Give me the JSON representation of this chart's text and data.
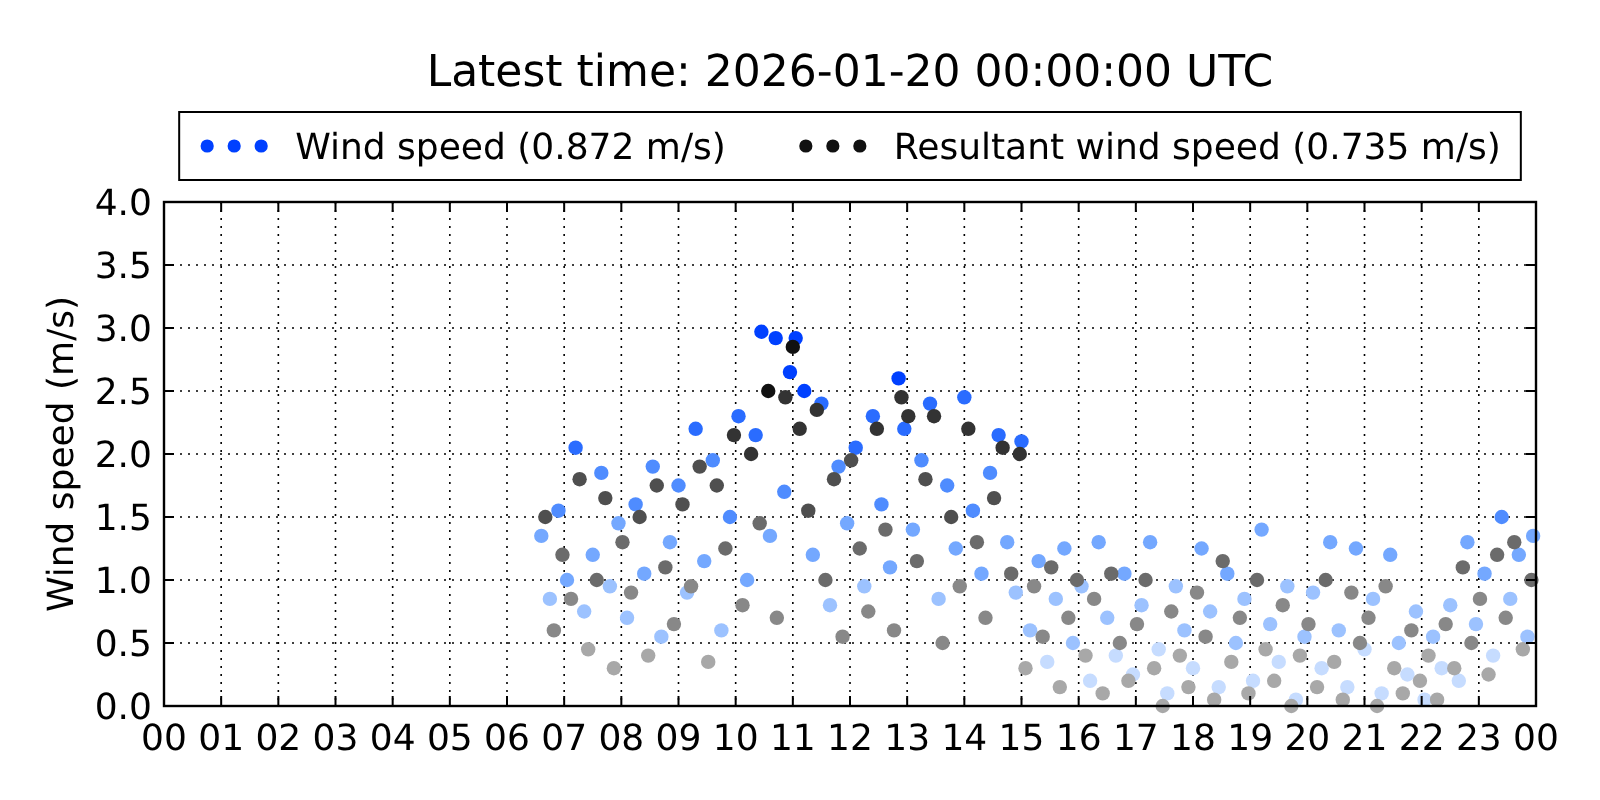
{
  "chart_data": {
    "type": "scatter",
    "title": "Latest time: 2026-01-20 00:00:00 UTC",
    "ylabel": "Wind speed (m/s)",
    "xlim": [
      0,
      24
    ],
    "xticks": [
      {
        "value": 0,
        "label": "00"
      },
      {
        "value": 1,
        "label": "01"
      },
      {
        "value": 2,
        "label": "02"
      },
      {
        "value": 3,
        "label": "03"
      },
      {
        "value": 4,
        "label": "04"
      },
      {
        "value": 5,
        "label": "05"
      },
      {
        "value": 6,
        "label": "06"
      },
      {
        "value": 7,
        "label": "07"
      },
      {
        "value": 8,
        "label": "08"
      },
      {
        "value": 9,
        "label": "09"
      },
      {
        "value": 10,
        "label": "10"
      },
      {
        "value": 11,
        "label": "11"
      },
      {
        "value": 12,
        "label": "12"
      },
      {
        "value": 13,
        "label": "13"
      },
      {
        "value": 14,
        "label": "14"
      },
      {
        "value": 15,
        "label": "15"
      },
      {
        "value": 16,
        "label": "16"
      },
      {
        "value": 17,
        "label": "17"
      },
      {
        "value": 18,
        "label": "18"
      },
      {
        "value": 19,
        "label": "19"
      },
      {
        "value": 20,
        "label": "20"
      },
      {
        "value": 21,
        "label": "21"
      },
      {
        "value": 22,
        "label": "22"
      },
      {
        "value": 23,
        "label": "23"
      },
      {
        "value": 24,
        "label": "00"
      }
    ],
    "ylim": [
      0,
      4
    ],
    "yticks": [
      {
        "value": 0,
        "label": "0.0"
      },
      0.5,
      {
        "value": 1,
        "label": "1.0"
      },
      1.5,
      {
        "value": 2,
        "label": "2.0"
      },
      2.5,
      {
        "value": 3,
        "label": "3.0"
      },
      3.5,
      {
        "value": 4,
        "label": "4.0"
      }
    ],
    "grid": true,
    "legend": "top",
    "marker": "circle",
    "series": [
      {
        "name": "Wind speed (0.872 m/s)",
        "color": "#0040ff",
        "x": [
          6.6,
          6.75,
          6.9,
          7.05,
          7.2,
          7.35,
          7.5,
          7.65,
          7.8,
          7.95,
          8.1,
          8.25,
          8.4,
          8.55,
          8.7,
          8.85,
          9.0,
          9.15,
          9.3,
          9.45,
          9.6,
          9.75,
          9.9,
          10.05,
          10.2,
          10.35,
          10.45,
          10.6,
          10.7,
          10.85,
          10.95,
          11.05,
          11.2,
          11.35,
          11.5,
          11.65,
          11.8,
          11.95,
          12.1,
          12.25,
          12.4,
          12.55,
          12.7,
          12.85,
          12.95,
          13.1,
          13.25,
          13.4,
          13.55,
          13.7,
          13.85,
          14.0,
          14.15,
          14.3,
          14.45,
          14.6,
          14.75,
          14.9,
          15.0,
          15.15,
          15.3,
          15.45,
          15.6,
          15.75,
          15.9,
          16.05,
          16.2,
          16.35,
          16.5,
          16.65,
          16.8,
          16.95,
          17.1,
          17.25,
          17.4,
          17.55,
          17.7,
          17.85,
          18.0,
          18.15,
          18.3,
          18.45,
          18.6,
          18.75,
          18.9,
          19.05,
          19.2,
          19.35,
          19.5,
          19.65,
          19.8,
          19.95,
          20.1,
          20.25,
          20.4,
          20.55,
          20.7,
          20.85,
          21.0,
          21.15,
          21.3,
          21.45,
          21.6,
          21.75,
          21.9,
          22.05,
          22.2,
          22.35,
          22.5,
          22.65,
          22.8,
          22.95,
          23.1,
          23.25,
          23.4,
          23.55,
          23.7,
          23.85,
          23.95
        ],
        "values": [
          1.35,
          0.85,
          1.55,
          1.0,
          2.05,
          0.75,
          1.2,
          1.85,
          0.95,
          1.45,
          0.7,
          1.6,
          1.05,
          1.9,
          0.55,
          1.3,
          1.75,
          0.9,
          2.2,
          1.15,
          1.95,
          0.6,
          1.5,
          2.3,
          1.0,
          2.15,
          2.97,
          1.35,
          2.92,
          1.7,
          2.65,
          2.92,
          2.5,
          1.2,
          2.4,
          0.8,
          1.9,
          1.45,
          2.05,
          0.95,
          2.3,
          1.6,
          1.1,
          2.6,
          2.2,
          1.4,
          1.95,
          2.4,
          0.85,
          1.75,
          1.25,
          2.45,
          1.55,
          1.05,
          1.85,
          2.15,
          1.3,
          0.9,
          2.1,
          0.6,
          1.15,
          0.35,
          0.85,
          1.25,
          0.5,
          0.95,
          0.2,
          1.3,
          0.7,
          0.4,
          1.05,
          0.25,
          0.8,
          1.3,
          0.45,
          0.1,
          0.95,
          0.6,
          0.3,
          1.25,
          0.75,
          0.15,
          1.05,
          0.5,
          0.85,
          0.2,
          1.4,
          0.65,
          0.35,
          0.95,
          0.05,
          0.55,
          0.9,
          0.3,
          1.3,
          0.6,
          0.15,
          1.25,
          0.45,
          0.85,
          0.1,
          1.2,
          0.5,
          0.25,
          0.75,
          0.05,
          0.55,
          0.3,
          0.8,
          0.2,
          1.3,
          0.65,
          1.05,
          0.4,
          1.5,
          0.85,
          1.2,
          0.55,
          1.35
        ],
        "colors": [
          "#74a8ff",
          "#9cc2ff",
          "#4f8cff",
          "#74a8ff",
          "#2a6cff",
          "#9cc2ff",
          "#74a8ff",
          "#4f8cff",
          "#9cc2ff",
          "#74a8ff",
          "#9cc2ff",
          "#4f8cff",
          "#74a8ff",
          "#4f8cff",
          "#9cc2ff",
          "#74a8ff",
          "#4f8cff",
          "#9cc2ff",
          "#2a6cff",
          "#74a8ff",
          "#4f8cff",
          "#9cc2ff",
          "#4f8cff",
          "#2a6cff",
          "#74a8ff",
          "#2a6cff",
          "#0040ff",
          "#74a8ff",
          "#0040ff",
          "#4f8cff",
          "#0040ff",
          "#0040ff",
          "#0040ff",
          "#74a8ff",
          "#2a6cff",
          "#9cc2ff",
          "#4f8cff",
          "#74a8ff",
          "#2a6cff",
          "#9cc2ff",
          "#2a6cff",
          "#4f8cff",
          "#74a8ff",
          "#0040ff",
          "#2a6cff",
          "#74a8ff",
          "#4f8cff",
          "#2a6cff",
          "#9cc2ff",
          "#4f8cff",
          "#74a8ff",
          "#2a6cff",
          "#4f8cff",
          "#74a8ff",
          "#4f8cff",
          "#2a6cff",
          "#74a8ff",
          "#9cc2ff",
          "#2a6cff",
          "#9cc2ff",
          "#74a8ff",
          "#c6dcff",
          "#9cc2ff",
          "#74a8ff",
          "#9cc2ff",
          "#9cc2ff",
          "#c6dcff",
          "#74a8ff",
          "#9cc2ff",
          "#c6dcff",
          "#74a8ff",
          "#c6dcff",
          "#9cc2ff",
          "#74a8ff",
          "#c6dcff",
          "#c6dcff",
          "#9cc2ff",
          "#9cc2ff",
          "#c6dcff",
          "#74a8ff",
          "#9cc2ff",
          "#c6dcff",
          "#74a8ff",
          "#9cc2ff",
          "#9cc2ff",
          "#c6dcff",
          "#74a8ff",
          "#9cc2ff",
          "#c6dcff",
          "#9cc2ff",
          "#c6dcff",
          "#9cc2ff",
          "#9cc2ff",
          "#c6dcff",
          "#74a8ff",
          "#9cc2ff",
          "#c6dcff",
          "#74a8ff",
          "#c6dcff",
          "#9cc2ff",
          "#c6dcff",
          "#74a8ff",
          "#9cc2ff",
          "#c6dcff",
          "#9cc2ff",
          "#c6dcff",
          "#9cc2ff",
          "#c6dcff",
          "#9cc2ff",
          "#c6dcff",
          "#74a8ff",
          "#9cc2ff",
          "#74a8ff",
          "#c6dcff",
          "#4f8cff",
          "#9cc2ff",
          "#74a8ff",
          "#9cc2ff",
          "#74a8ff"
        ]
      },
      {
        "name": "Resultant wind speed (0.735 m/s)",
        "color": "#111111",
        "x": [
          6.67,
          6.82,
          6.97,
          7.12,
          7.27,
          7.42,
          7.57,
          7.72,
          7.87,
          8.02,
          8.17,
          8.32,
          8.47,
          8.62,
          8.77,
          8.92,
          9.07,
          9.22,
          9.37,
          9.52,
          9.67,
          9.82,
          9.97,
          10.12,
          10.27,
          10.42,
          10.57,
          10.72,
          10.87,
          11.0,
          11.12,
          11.27,
          11.42,
          11.57,
          11.72,
          11.87,
          12.02,
          12.17,
          12.32,
          12.47,
          12.62,
          12.77,
          12.9,
          13.02,
          13.17,
          13.32,
          13.47,
          13.62,
          13.77,
          13.92,
          14.07,
          14.22,
          14.37,
          14.52,
          14.67,
          14.82,
          14.97,
          15.07,
          15.22,
          15.37,
          15.52,
          15.67,
          15.82,
          15.97,
          16.12,
          16.27,
          16.42,
          16.57,
          16.72,
          16.87,
          17.02,
          17.17,
          17.32,
          17.47,
          17.62,
          17.77,
          17.92,
          18.07,
          18.22,
          18.37,
          18.52,
          18.67,
          18.82,
          18.97,
          19.12,
          19.27,
          19.42,
          19.57,
          19.72,
          19.87,
          20.02,
          20.17,
          20.32,
          20.47,
          20.62,
          20.77,
          20.92,
          21.07,
          21.22,
          21.37,
          21.52,
          21.67,
          21.82,
          21.97,
          22.12,
          22.27,
          22.42,
          22.57,
          22.72,
          22.87,
          23.02,
          23.17,
          23.32,
          23.47,
          23.62,
          23.77,
          23.92
        ],
        "values": [
          1.5,
          0.6,
          1.2,
          0.85,
          1.8,
          0.45,
          1.0,
          1.65,
          0.3,
          1.3,
          0.9,
          1.5,
          0.4,
          1.75,
          1.1,
          0.65,
          1.6,
          0.95,
          1.9,
          0.35,
          1.75,
          1.25,
          2.15,
          0.8,
          2.0,
          1.45,
          2.5,
          0.7,
          2.45,
          2.85,
          2.2,
          1.55,
          2.35,
          1.0,
          1.8,
          0.55,
          1.95,
          1.25,
          0.75,
          2.2,
          1.4,
          0.6,
          2.45,
          2.3,
          1.15,
          1.8,
          2.3,
          0.5,
          1.5,
          0.95,
          2.2,
          1.3,
          0.7,
          1.65,
          2.05,
          1.05,
          2.0,
          0.3,
          0.95,
          0.55,
          1.1,
          0.15,
          0.7,
          1.0,
          0.4,
          0.85,
          0.1,
          1.05,
          0.5,
          0.2,
          0.65,
          1.0,
          0.3,
          0.0,
          0.75,
          0.4,
          0.15,
          0.9,
          0.55,
          0.05,
          1.15,
          0.35,
          0.7,
          0.1,
          1.0,
          0.45,
          0.2,
          0.8,
          0.0,
          0.4,
          0.65,
          0.15,
          1.0,
          0.35,
          0.05,
          0.9,
          0.5,
          0.7,
          0.0,
          0.95,
          0.3,
          0.1,
          0.6,
          0.2,
          0.4,
          0.05,
          0.65,
          0.3,
          1.1,
          0.5,
          0.85,
          0.25,
          1.2,
          0.7,
          1.3,
          0.45,
          1.0
        ],
        "colors": [
          "#4f4f4f",
          "#888888",
          "#6b6b6b",
          "#888888",
          "#4f4f4f",
          "#a8a8a8",
          "#6b6b6b",
          "#4f4f4f",
          "#a8a8a8",
          "#6b6b6b",
          "#888888",
          "#4f4f4f",
          "#a8a8a8",
          "#4f4f4f",
          "#6b6b6b",
          "#888888",
          "#4f4f4f",
          "#888888",
          "#4f4f4f",
          "#a8a8a8",
          "#4f4f4f",
          "#6b6b6b",
          "#333333",
          "#888888",
          "#333333",
          "#6b6b6b",
          "#111111",
          "#888888",
          "#333333",
          "#111111",
          "#333333",
          "#4f4f4f",
          "#333333",
          "#6b6b6b",
          "#4f4f4f",
          "#888888",
          "#4f4f4f",
          "#6b6b6b",
          "#888888",
          "#333333",
          "#6b6b6b",
          "#888888",
          "#333333",
          "#333333",
          "#6b6b6b",
          "#4f4f4f",
          "#333333",
          "#888888",
          "#4f4f4f",
          "#888888",
          "#333333",
          "#6b6b6b",
          "#888888",
          "#4f4f4f",
          "#333333",
          "#6b6b6b",
          "#333333",
          "#a8a8a8",
          "#888888",
          "#888888",
          "#6b6b6b",
          "#a8a8a8",
          "#888888",
          "#6b6b6b",
          "#a8a8a8",
          "#888888",
          "#a8a8a8",
          "#6b6b6b",
          "#888888",
          "#a8a8a8",
          "#888888",
          "#6b6b6b",
          "#a8a8a8",
          "#a8a8a8",
          "#888888",
          "#a8a8a8",
          "#a8a8a8",
          "#888888",
          "#888888",
          "#a8a8a8",
          "#6b6b6b",
          "#a8a8a8",
          "#888888",
          "#a8a8a8",
          "#6b6b6b",
          "#a8a8a8",
          "#a8a8a8",
          "#888888",
          "#a8a8a8",
          "#a8a8a8",
          "#888888",
          "#a8a8a8",
          "#6b6b6b",
          "#a8a8a8",
          "#a8a8a8",
          "#888888",
          "#888888",
          "#888888",
          "#a8a8a8",
          "#888888",
          "#a8a8a8",
          "#a8a8a8",
          "#888888",
          "#a8a8a8",
          "#a8a8a8",
          "#a8a8a8",
          "#888888",
          "#a8a8a8",
          "#6b6b6b",
          "#888888",
          "#888888",
          "#a8a8a8",
          "#6b6b6b",
          "#888888",
          "#6b6b6b",
          "#a8a8a8",
          "#6b6b6b"
        ]
      }
    ]
  }
}
